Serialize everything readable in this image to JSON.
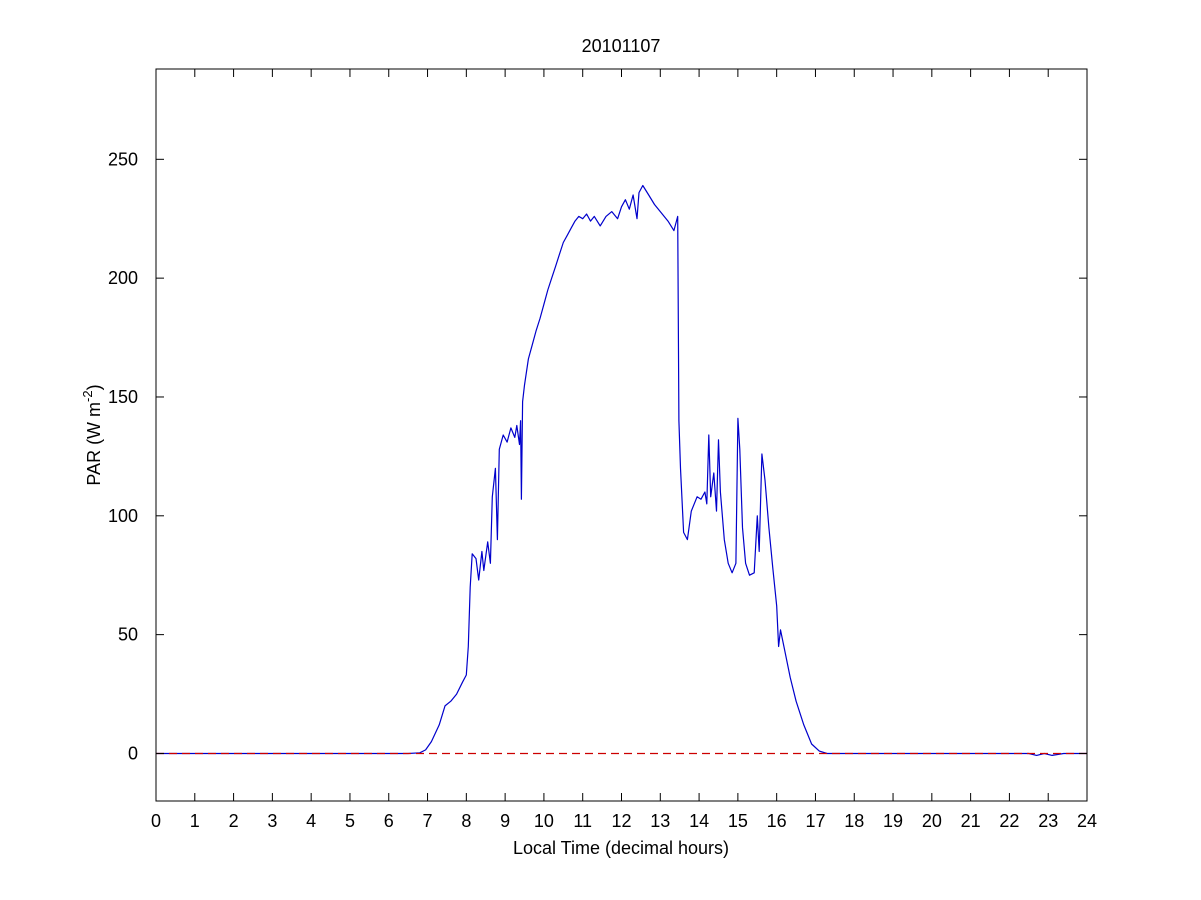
{
  "chart_data": {
    "type": "line",
    "title": "20101107",
    "xlabel": "Local Time (decimal hours)",
    "ylabel": {
      "main": "PAR (W m",
      "superscript": "-2",
      "close": ")"
    },
    "xlim": [
      0,
      24
    ],
    "ylim": [
      -20,
      288
    ],
    "x_ticks": [
      0,
      1,
      2,
      3,
      4,
      5,
      6,
      7,
      8,
      9,
      10,
      11,
      12,
      13,
      14,
      15,
      16,
      17,
      18,
      19,
      20,
      21,
      22,
      23,
      24
    ],
    "x_tick_labels": [
      "0",
      "1",
      "2",
      "3",
      "4",
      "5",
      "6",
      "7",
      "8",
      "9",
      "10",
      "11",
      "12",
      "13",
      "14",
      "15",
      "16",
      "17",
      "18",
      "19",
      "20",
      "21",
      "22",
      "23",
      "24"
    ],
    "y_ticks": [
      0,
      50,
      100,
      150,
      200,
      250
    ],
    "y_tick_labels": [
      "0",
      "50",
      "100",
      "150",
      "200",
      "250"
    ],
    "grid": false,
    "series": [
      {
        "color": "#0000cc",
        "style": "solid",
        "points": [
          [
            0,
            0
          ],
          [
            6.5,
            0
          ],
          [
            6.8,
            0.3
          ],
          [
            6.95,
            1.5
          ],
          [
            7.1,
            5
          ],
          [
            7.3,
            12
          ],
          [
            7.45,
            20
          ],
          [
            7.6,
            22
          ],
          [
            7.75,
            25
          ],
          [
            7.9,
            30
          ],
          [
            8.0,
            33
          ],
          [
            8.05,
            45
          ],
          [
            8.1,
            70
          ],
          [
            8.15,
            84
          ],
          [
            8.25,
            82
          ],
          [
            8.32,
            73
          ],
          [
            8.4,
            85
          ],
          [
            8.45,
            77
          ],
          [
            8.55,
            89
          ],
          [
            8.62,
            80
          ],
          [
            8.67,
            108
          ],
          [
            8.75,
            120
          ],
          [
            8.8,
            90
          ],
          [
            8.85,
            128
          ],
          [
            8.95,
            134
          ],
          [
            9.05,
            131
          ],
          [
            9.15,
            137
          ],
          [
            9.25,
            133
          ],
          [
            9.3,
            138
          ],
          [
            9.37,
            130
          ],
          [
            9.4,
            140
          ],
          [
            9.42,
            107
          ],
          [
            9.45,
            148
          ],
          [
            9.5,
            155
          ],
          [
            9.6,
            166
          ],
          [
            9.7,
            172
          ],
          [
            9.8,
            178
          ],
          [
            9.9,
            183
          ],
          [
            10.0,
            189
          ],
          [
            10.1,
            195
          ],
          [
            10.2,
            200
          ],
          [
            10.3,
            205
          ],
          [
            10.4,
            210
          ],
          [
            10.5,
            215
          ],
          [
            10.6,
            218
          ],
          [
            10.7,
            221
          ],
          [
            10.8,
            224
          ],
          [
            10.9,
            226
          ],
          [
            11.0,
            225
          ],
          [
            11.1,
            227
          ],
          [
            11.2,
            224
          ],
          [
            11.3,
            226
          ],
          [
            11.45,
            222
          ],
          [
            11.6,
            226
          ],
          [
            11.75,
            228
          ],
          [
            11.9,
            225
          ],
          [
            12.0,
            230
          ],
          [
            12.1,
            233
          ],
          [
            12.2,
            229
          ],
          [
            12.3,
            235
          ],
          [
            12.4,
            225
          ],
          [
            12.45,
            236
          ],
          [
            12.55,
            239
          ],
          [
            12.7,
            235
          ],
          [
            12.85,
            231
          ],
          [
            13.0,
            228
          ],
          [
            13.2,
            224
          ],
          [
            13.35,
            220
          ],
          [
            13.45,
            226
          ],
          [
            13.48,
            140
          ],
          [
            13.52,
            120
          ],
          [
            13.6,
            93
          ],
          [
            13.7,
            90
          ],
          [
            13.8,
            102
          ],
          [
            13.95,
            108
          ],
          [
            14.05,
            107
          ],
          [
            14.15,
            110
          ],
          [
            14.2,
            105
          ],
          [
            14.25,
            134
          ],
          [
            14.3,
            108
          ],
          [
            14.38,
            118
          ],
          [
            14.45,
            102
          ],
          [
            14.5,
            132
          ],
          [
            14.55,
            110
          ],
          [
            14.65,
            90
          ],
          [
            14.75,
            80
          ],
          [
            14.85,
            76
          ],
          [
            14.95,
            80
          ],
          [
            15.0,
            141
          ],
          [
            15.05,
            128
          ],
          [
            15.12,
            95
          ],
          [
            15.2,
            80
          ],
          [
            15.3,
            75
          ],
          [
            15.42,
            76
          ],
          [
            15.5,
            100
          ],
          [
            15.55,
            85
          ],
          [
            15.62,
            126
          ],
          [
            15.7,
            115
          ],
          [
            15.8,
            95
          ],
          [
            15.9,
            78
          ],
          [
            16.0,
            62
          ],
          [
            16.05,
            45
          ],
          [
            16.1,
            52
          ],
          [
            16.2,
            44
          ],
          [
            16.35,
            32
          ],
          [
            16.5,
            22
          ],
          [
            16.7,
            12
          ],
          [
            16.9,
            4
          ],
          [
            17.1,
            1
          ],
          [
            17.3,
            0
          ],
          [
            22.5,
            0
          ],
          [
            22.7,
            -0.8
          ],
          [
            22.9,
            0
          ],
          [
            23.1,
            -0.8
          ],
          [
            23.4,
            0
          ],
          [
            24,
            0
          ]
        ]
      },
      {
        "color": "#cc0000",
        "style": "dashed",
        "points": [
          [
            0,
            0
          ],
          [
            24,
            0
          ]
        ]
      }
    ]
  }
}
